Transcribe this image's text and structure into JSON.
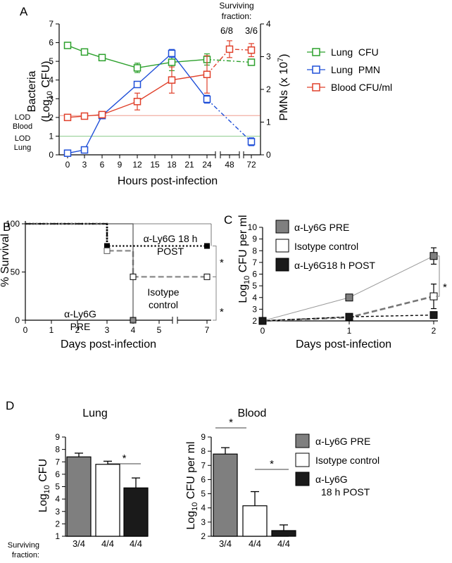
{
  "panels": {
    "A": "A",
    "B": "B",
    "C": "C",
    "D": "D"
  },
  "chart_data": [
    {
      "id": "A",
      "type": "line",
      "xlabel": "Hours post-infection",
      "ylabel_left": "Bacteria (Log10 CFU)",
      "ylabel_left_parts": {
        "main": "Bacteria",
        "open": "(Log",
        "sub": "10",
        "close": " CFU)"
      },
      "ylabel_right": "PMNs (x 10^7)",
      "ylabel_right_parts": {
        "main": "PMNs (x 10",
        "sup": "7",
        "close": ")"
      },
      "x_ticks": [
        "0",
        "3",
        "6",
        "9",
        "12",
        "15",
        "18",
        "21",
        "24",
        "48",
        "72"
      ],
      "y_left_ticks": [
        "0",
        "1",
        "2",
        "3",
        "4",
        "5",
        "6",
        "7"
      ],
      "y_right_ticks": [
        "0",
        "1",
        "2",
        "3",
        "4"
      ],
      "ylim_left": [
        0,
        7
      ],
      "ylim_right": [
        0,
        4
      ],
      "colors": {
        "lung_cfu": "#2ca02c",
        "lung_pmn": "#1f4fd8",
        "blood_cfu": "#e0402a"
      },
      "lod": [
        {
          "label_top": "LOD",
          "label_bottom": "Blood",
          "value": 2.1,
          "color": "#e0402a"
        },
        {
          "label_top": "LOD",
          "label_bottom": "Lung",
          "value": 1.0,
          "color": "#2ca02c"
        }
      ],
      "surviving": {
        "title_top": "Surviving",
        "title_bottom": "fraction:",
        "at48": "6/8",
        "at72": "3/6"
      },
      "series": [
        {
          "name": "Lung  CFU",
          "key": "lung_cfu",
          "x": [
            0,
            3,
            6,
            12,
            18,
            24,
            72
          ],
          "y": [
            5.85,
            5.5,
            5.2,
            4.65,
            4.95,
            5.1,
            4.95
          ],
          "err": [
            0.1,
            0.1,
            0.1,
            0.25,
            0.45,
            0.3,
            0.1
          ]
        },
        {
          "name": "Lung  PMN",
          "key": "lung_pmn",
          "x": [
            0,
            3,
            6,
            12,
            18,
            24,
            72
          ],
          "y": [
            0.05,
            0.15,
            1.2,
            2.15,
            3.1,
            1.7,
            0.4
          ],
          "err": [
            0.02,
            0.02,
            0.05,
            0.08,
            0.12,
            0.12,
            0.12
          ]
        },
        {
          "name": "Blood CFU/ml",
          "key": "blood_cfu",
          "x": [
            0,
            3,
            6,
            12,
            18,
            24,
            48,
            72
          ],
          "y": [
            2.0,
            2.07,
            2.15,
            2.85,
            4.0,
            4.3,
            5.65,
            5.6
          ],
          "err": [
            0.05,
            0.05,
            0.05,
            0.45,
            0.7,
            1.0,
            0.45,
            0.35
          ]
        }
      ]
    },
    {
      "id": "B",
      "type": "line",
      "xlabel": "Days post-infection",
      "ylabel": "% Survival",
      "x_ticks": [
        "0",
        "1",
        "2",
        "3",
        "4",
        "5",
        "7"
      ],
      "y_ticks": [
        "0",
        "50",
        "100"
      ],
      "ylim": [
        0,
        100
      ],
      "labels": {
        "post_top": "α-Ly6G 18 h",
        "post_bottom": "POST",
        "iso_top": "Isotype",
        "iso_bottom": "control",
        "pre_top": "α-Ly6G",
        "pre_bottom": "PRE"
      },
      "significance": [
        "*",
        "*"
      ],
      "series": [
        {
          "name": "α-Ly6G 18 h POST",
          "x": [
            0,
            3,
            3,
            7
          ],
          "y": [
            100,
            100,
            77,
            77
          ]
        },
        {
          "name": "Isotype control",
          "x": [
            0,
            3,
            3,
            4,
            4,
            7
          ],
          "y": [
            100,
            100,
            72,
            72,
            45,
            45
          ]
        },
        {
          "name": "α-Ly6G PRE",
          "x": [
            0,
            4,
            4
          ],
          "y": [
            100,
            100,
            0
          ]
        }
      ]
    },
    {
      "id": "C",
      "type": "line",
      "xlabel": "Days post-infection",
      "ylabel": "Log10 CFU per ml",
      "ylabel_parts": {
        "pre": "Log",
        "sub": "10",
        "post": " CFU per ml"
      },
      "x_ticks": [
        "0",
        "1",
        "2"
      ],
      "y_ticks": [
        "2",
        "3",
        "4",
        "5",
        "6",
        "7",
        "8",
        "9",
        "10"
      ],
      "ylim": [
        2,
        10
      ],
      "significance": [
        "*"
      ],
      "series": [
        {
          "name": "α-Ly6G PRE",
          "x": [
            0,
            1,
            2
          ],
          "y": [
            2.0,
            4.0,
            7.55
          ],
          "err": [
            0,
            0,
            0.7
          ]
        },
        {
          "name": "Isotype control",
          "x": [
            0,
            1,
            2
          ],
          "y": [
            2.0,
            2.3,
            4.1
          ],
          "err": [
            0,
            0,
            1.05
          ]
        },
        {
          "name": "α-Ly6G18 h POST",
          "x": [
            0,
            1,
            2
          ],
          "y": [
            2.0,
            2.35,
            2.5
          ],
          "err": [
            0,
            0,
            0.1
          ]
        }
      ]
    },
    {
      "id": "D-lung",
      "type": "bar",
      "title": "Lung",
      "ylabel": "Log10 CFU",
      "ylabel_parts": {
        "pre": "Log",
        "sub": "10",
        "post": " CFU"
      },
      "categories": [
        "α-Ly6G PRE",
        "Isotype control",
        "α-Ly6G 18 h POST"
      ],
      "values": [
        7.4,
        6.8,
        4.9
      ],
      "err": [
        0.3,
        0.25,
        0.8
      ],
      "y_ticks": [
        "1",
        "2",
        "3",
        "4",
        "5",
        "6",
        "7",
        "8",
        "9"
      ],
      "ylim": [
        1,
        9
      ],
      "surviving_label_top": "Surviving",
      "surviving_label_bottom": "fraction:",
      "surviving": [
        "3/4",
        "4/4",
        "4/4"
      ],
      "significance": [
        "*"
      ]
    },
    {
      "id": "D-blood",
      "type": "bar",
      "title": "Blood",
      "ylabel": "Log10 CFU per ml",
      "ylabel_parts": {
        "pre": "Log",
        "sub": "10",
        "post": " CFU per ml"
      },
      "categories": [
        "α-Ly6G PRE",
        "Isotype control",
        "α-Ly6G 18 h POST"
      ],
      "values": [
        7.8,
        4.15,
        2.4
      ],
      "err": [
        0.45,
        1.0,
        0.4
      ],
      "y_ticks": [
        "2",
        "3",
        "4",
        "5",
        "6",
        "7",
        "8",
        "9"
      ],
      "ylim": [
        2,
        9
      ],
      "surviving": [
        "3/4",
        "4/4",
        "4/4"
      ],
      "significance": [
        "*",
        "*"
      ]
    }
  ],
  "legends": {
    "C": [
      "α-Ly6G PRE",
      "Isotype control",
      "α-Ly6G18 h POST"
    ],
    "D": [
      {
        "line1": "α-Ly6G PRE",
        "line2": ""
      },
      {
        "line1": "Isotype control",
        "line2": ""
      },
      {
        "line1": "α-Ly6G",
        "line2": "18 h POST"
      }
    ]
  },
  "fills": {
    "pre": "#7f7f7f",
    "iso": "#ffffff",
    "post": "#1a1a1a"
  }
}
